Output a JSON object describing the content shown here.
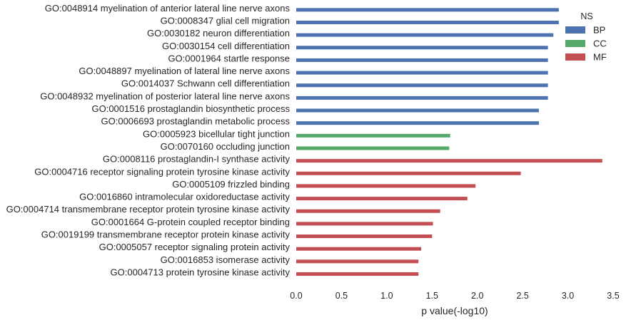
{
  "chart_data": {
    "type": "bar",
    "orientation": "horizontal",
    "xlabel": "p value(-log10)",
    "xlim": [
      0,
      3.5
    ],
    "xticks": [
      "0.0",
      "0.5",
      "1.0",
      "1.5",
      "2.0",
      "2.5",
      "3.0",
      "3.5"
    ],
    "grid": false,
    "legend": {
      "title": "NS",
      "placement": "top-right",
      "entries": [
        {
          "name": "BP",
          "color": "#4c72b0"
        },
        {
          "name": "CC",
          "color": "#55a868"
        },
        {
          "name": "MF",
          "color": "#c44e52"
        }
      ]
    },
    "categories": [
      {
        "label": "GO:0048914 myelination of anterior lateral line nerve axons",
        "value": 2.9,
        "series": "BP"
      },
      {
        "label": "GO:0008347 glial cell migration",
        "value": 2.9,
        "series": "BP"
      },
      {
        "label": "GO:0030182 neuron differentiation",
        "value": 2.84,
        "series": "BP"
      },
      {
        "label": "GO:0030154 cell differentiation",
        "value": 2.78,
        "series": "BP"
      },
      {
        "label": "GO:0001964 startle response",
        "value": 2.78,
        "series": "BP"
      },
      {
        "label": "GO:0048897 myelination of lateral line nerve axons",
        "value": 2.78,
        "series": "BP"
      },
      {
        "label": "GO:0014037 Schwann cell differentiation",
        "value": 2.78,
        "series": "BP"
      },
      {
        "label": "GO:0048932 myelination of posterior lateral line nerve axons",
        "value": 2.78,
        "series": "BP"
      },
      {
        "label": "GO:0001516 prostaglandin biosynthetic process",
        "value": 2.68,
        "series": "BP"
      },
      {
        "label": "GO:0006693 prostaglandin metabolic process",
        "value": 2.68,
        "series": "BP"
      },
      {
        "label": "GO:0005923 bicellular tight junction",
        "value": 1.7,
        "series": "CC"
      },
      {
        "label": "GO:0070160 occluding junction",
        "value": 1.69,
        "series": "CC"
      },
      {
        "label": "GO:0008116 prostaglandin-I synthase activity",
        "value": 3.38,
        "series": "MF"
      },
      {
        "label": "GO:0004716 receptor signaling protein tyrosine kinase activity",
        "value": 2.48,
        "series": "MF"
      },
      {
        "label": "GO:0005109 frizzled binding",
        "value": 1.98,
        "series": "MF"
      },
      {
        "label": "GO:0016860 intramolecular oxidoreductase activity",
        "value": 1.89,
        "series": "MF"
      },
      {
        "label": "GO:0004714 transmembrane receptor protein tyrosine kinase activity",
        "value": 1.59,
        "series": "MF"
      },
      {
        "label": "GO:0001664 G-protein coupled receptor binding",
        "value": 1.51,
        "series": "MF"
      },
      {
        "label": "GO:0019199 transmembrane receptor protein kinase activity",
        "value": 1.5,
        "series": "MF"
      },
      {
        "label": "GO:0005057 receptor signaling protein activity",
        "value": 1.38,
        "series": "MF"
      },
      {
        "label": "GO:0016853 isomerase activity",
        "value": 1.35,
        "series": "MF"
      },
      {
        "label": "GO:0004713 protein tyrosine kinase activity",
        "value": 1.35,
        "series": "MF"
      }
    ]
  }
}
